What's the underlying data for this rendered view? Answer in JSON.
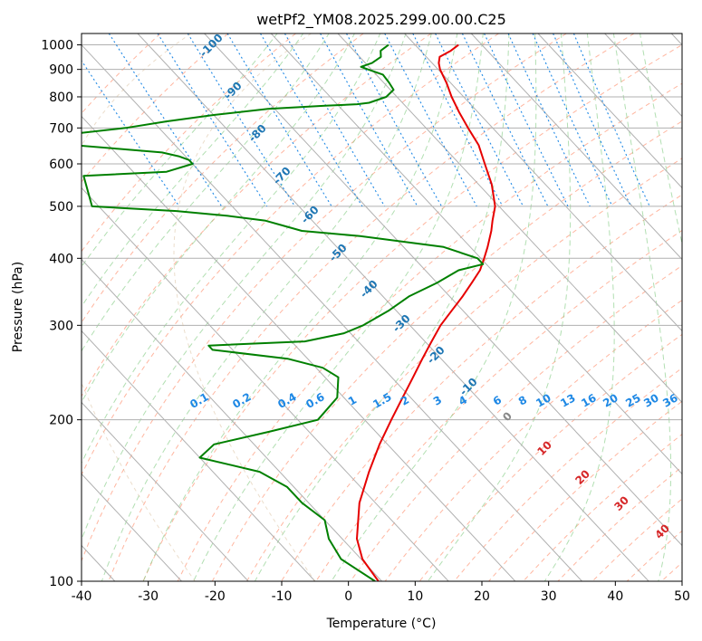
{
  "chart_data": {
    "type": "line",
    "title": "wetPf2_YM08.2025.299.00.00.C25",
    "xlabel": "Temperature (°C)",
    "ylabel": "Pressure (hPa)",
    "xlim": [
      -40,
      50
    ],
    "ylim": [
      1050,
      100
    ],
    "y_scale": "log",
    "skew_deg_per_decade": 75,
    "x_ticks": [
      -40,
      -30,
      -20,
      -10,
      0,
      10,
      20,
      30,
      40,
      50
    ],
    "y_ticks": [
      100,
      200,
      300,
      400,
      500,
      600,
      700,
      800,
      900,
      1000
    ],
    "colors": {
      "temperature": "#e60000",
      "dewpoint": "#008000",
      "isotherm": "#b0b0b0",
      "dry_adiabat": "#ff9e80",
      "moist_adiabat": "#7fc97f",
      "mixing_ratio": "#1e88e5",
      "adiabat_label": "#1f77b4",
      "moist_label": "#d62728",
      "lcl_curve": "#d2b48c"
    },
    "series": [
      {
        "name": "Temperature",
        "points": [
          [
            1000,
            16.5
          ],
          [
            975,
            14.5
          ],
          [
            950,
            12
          ],
          [
            925,
            11
          ],
          [
            900,
            10.3
          ],
          [
            850,
            9.4
          ],
          [
            800,
            8.2
          ],
          [
            750,
            7.2
          ],
          [
            700,
            6.3
          ],
          [
            650,
            5.5
          ],
          [
            600,
            3.8
          ],
          [
            550,
            2
          ],
          [
            500,
            -0.6
          ],
          [
            470,
            -3
          ],
          [
            450,
            -4.6
          ],
          [
            420,
            -7.4
          ],
          [
            400,
            -9.5
          ],
          [
            380,
            -11.8
          ],
          [
            360,
            -14.8
          ],
          [
            340,
            -18
          ],
          [
            320,
            -21.6
          ],
          [
            300,
            -25.4
          ],
          [
            280,
            -29
          ],
          [
            260,
            -32.8
          ],
          [
            240,
            -36.8
          ],
          [
            220,
            -41.2
          ],
          [
            200,
            -46
          ],
          [
            180,
            -51.2
          ],
          [
            160,
            -56.6
          ],
          [
            140,
            -62.4
          ],
          [
            120,
            -67.8
          ],
          [
            110,
            -69.8
          ],
          [
            100,
            -70.5
          ]
        ]
      },
      {
        "name": "Dewpoint",
        "points": [
          [
            1000,
            6
          ],
          [
            975,
            4
          ],
          [
            950,
            3.2
          ],
          [
            925,
            1
          ],
          [
            910,
            -1.2
          ],
          [
            900,
            -0.5
          ],
          [
            880,
            1
          ],
          [
            850,
            0.8
          ],
          [
            825,
            0.5
          ],
          [
            800,
            -1.6
          ],
          [
            780,
            -5
          ],
          [
            775,
            -7
          ],
          [
            770,
            -12
          ],
          [
            760,
            -21
          ],
          [
            740,
            -30
          ],
          [
            720,
            -38
          ],
          [
            700,
            -45
          ],
          [
            680,
            -55
          ],
          [
            670,
            -70
          ],
          [
            660,
            -70
          ],
          [
            650,
            -55
          ],
          [
            640,
            -49
          ],
          [
            630,
            -43
          ],
          [
            620,
            -41
          ],
          [
            610,
            -40
          ],
          [
            600,
            -40
          ],
          [
            580,
            -45
          ],
          [
            570,
            -58
          ],
          [
            500,
            -61
          ],
          [
            490,
            -49
          ],
          [
            480,
            -42
          ],
          [
            470,
            -37
          ],
          [
            460,
            -35
          ],
          [
            450,
            -33
          ],
          [
            440,
            -25
          ],
          [
            420,
            -14
          ],
          [
            400,
            -10.5
          ],
          [
            390,
            -10.5
          ],
          [
            380,
            -15
          ],
          [
            360,
            -20
          ],
          [
            340,
            -26
          ],
          [
            320,
            -31
          ],
          [
            300,
            -37
          ],
          [
            290,
            -41
          ],
          [
            280,
            -48
          ],
          [
            275,
            -63
          ],
          [
            270,
            -63
          ],
          [
            260,
            -53
          ],
          [
            250,
            -49
          ],
          [
            240,
            -48
          ],
          [
            220,
            -51
          ],
          [
            200,
            -57
          ],
          [
            190,
            -66
          ],
          [
            180,
            -76
          ],
          [
            170,
            -80
          ],
          [
            160,
            -73
          ],
          [
            150,
            -71
          ],
          [
            140,
            -71
          ],
          [
            130,
            -70
          ],
          [
            120,
            -72
          ],
          [
            110,
            -73
          ],
          [
            100,
            -71
          ]
        ]
      }
    ],
    "dry_adiabat_labels": [
      "-100",
      "-90",
      "-80",
      "-70",
      "-60",
      "-50",
      "-40",
      "-30",
      "-20",
      "-10"
    ],
    "moist_adiabat_labels": [
      "0",
      "10",
      "20",
      "30",
      "40"
    ],
    "mixing_ratio_labels": [
      "0.1",
      "0.2",
      "0.4",
      "0.6",
      "1",
      "1.5",
      "2",
      "3",
      "4",
      "6",
      "8",
      "10",
      "13",
      "16",
      "20",
      "25",
      "30",
      "36"
    ]
  }
}
